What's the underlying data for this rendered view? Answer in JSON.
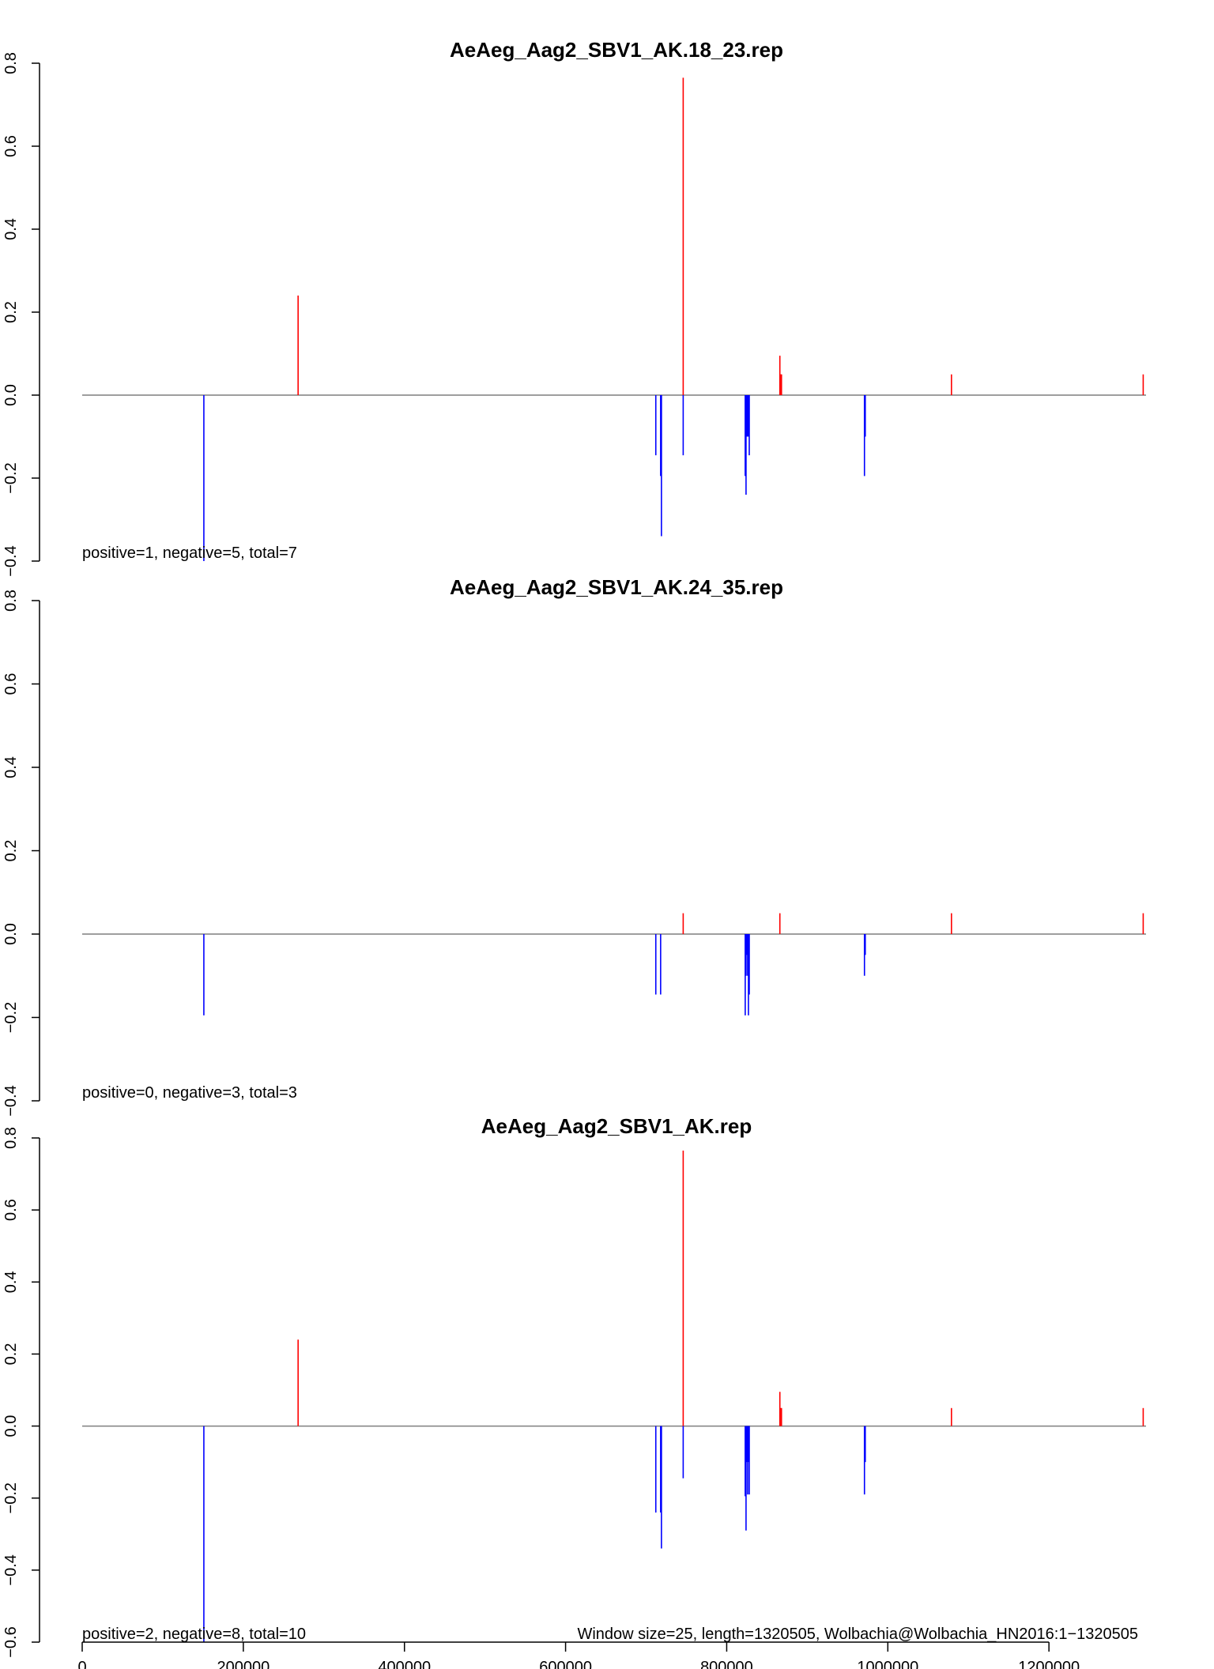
{
  "chart_data": [
    {
      "type": "bar",
      "title": "AeAeg_Aag2_SBV1_AK.18_23.rep",
      "ylim": [
        -0.4,
        0.8
      ],
      "yticks": [
        -0.4,
        -0.2,
        0.0,
        0.2,
        0.4,
        0.6,
        0.8
      ],
      "ytick_labels": [
        "−0.4",
        "−0.2",
        "0.0",
        "0.2",
        "0.4",
        "0.6",
        "0.8"
      ],
      "summary": "positive=1, negative=5, total=7",
      "colors": {
        "positive": "#ff0000",
        "negative": "#0000ff",
        "baseline": "#7f7f7f"
      },
      "positive": [
        {
          "x": 268000,
          "y": 0.24
        },
        {
          "x": 746000,
          "y": 0.765
        },
        {
          "x": 866000,
          "y": 0.095
        },
        {
          "x": 867000,
          "y": 0.05
        },
        {
          "x": 868000,
          "y": 0.05
        },
        {
          "x": 1079000,
          "y": 0.05
        },
        {
          "x": 1317000,
          "y": 0.05
        }
      ],
      "negative": [
        {
          "x": 151000,
          "y": -0.4
        },
        {
          "x": 712000,
          "y": -0.145
        },
        {
          "x": 718000,
          "y": -0.195
        },
        {
          "x": 719000,
          "y": -0.34
        },
        {
          "x": 746000,
          "y": -0.145
        },
        {
          "x": 823000,
          "y": -0.195
        },
        {
          "x": 824000,
          "y": -0.24
        },
        {
          "x": 825000,
          "y": -0.1
        },
        {
          "x": 826000,
          "y": -0.1
        },
        {
          "x": 827000,
          "y": -0.1
        },
        {
          "x": 828000,
          "y": -0.145
        },
        {
          "x": 971000,
          "y": -0.195
        },
        {
          "x": 972000,
          "y": -0.1
        }
      ]
    },
    {
      "type": "bar",
      "title": "AeAeg_Aag2_SBV1_AK.24_35.rep",
      "ylim": [
        -0.4,
        0.8
      ],
      "yticks": [
        -0.4,
        -0.2,
        0.0,
        0.2,
        0.4,
        0.6,
        0.8
      ],
      "ytick_labels": [
        "−0.4",
        "−0.2",
        "0.0",
        "0.2",
        "0.4",
        "0.6",
        "0.8"
      ],
      "summary": "positive=0, negative=3, total=3",
      "colors": {
        "positive": "#ff0000",
        "negative": "#0000ff",
        "baseline": "#7f7f7f"
      },
      "positive": [
        {
          "x": 746000,
          "y": 0.05
        },
        {
          "x": 866000,
          "y": 0.05
        },
        {
          "x": 1079000,
          "y": 0.05
        },
        {
          "x": 1317000,
          "y": 0.05
        }
      ],
      "negative": [
        {
          "x": 151000,
          "y": -0.195
        },
        {
          "x": 712000,
          "y": -0.145
        },
        {
          "x": 718000,
          "y": -0.145
        },
        {
          "x": 823000,
          "y": -0.195
        },
        {
          "x": 824000,
          "y": -0.1
        },
        {
          "x": 825000,
          "y": -0.05
        },
        {
          "x": 826000,
          "y": -0.1
        },
        {
          "x": 827000,
          "y": -0.195
        },
        {
          "x": 828000,
          "y": -0.145
        },
        {
          "x": 971000,
          "y": -0.1
        },
        {
          "x": 972000,
          "y": -0.05
        }
      ]
    },
    {
      "type": "bar",
      "title": "AeAeg_Aag2_SBV1_AK.rep",
      "ylim": [
        -0.6,
        0.8
      ],
      "yticks": [
        -0.6,
        -0.4,
        -0.2,
        0.0,
        0.2,
        0.4,
        0.6,
        0.8
      ],
      "ytick_labels": [
        "−0.6",
        "−0.4",
        "−0.2",
        "0.0",
        "0.2",
        "0.4",
        "0.6",
        "0.8"
      ],
      "summary": "positive=2, negative=8, total=10",
      "footnote": "Window size=25, length=1320505, Wolbachia@Wolbachia_HN2016:1−1320505",
      "colors": {
        "positive": "#ff0000",
        "negative": "#0000ff",
        "baseline": "#7f7f7f"
      },
      "xlim": [
        0,
        1320505
      ],
      "xticks": [
        0,
        200000,
        400000,
        600000,
        800000,
        1000000,
        1200000
      ],
      "xtick_labels": [
        "0",
        "200000",
        "400000",
        "600000",
        "800000",
        "1000000",
        "1200000"
      ],
      "positive": [
        {
          "x": 268000,
          "y": 0.24
        },
        {
          "x": 746000,
          "y": 0.765
        },
        {
          "x": 866000,
          "y": 0.095
        },
        {
          "x": 867000,
          "y": 0.05
        },
        {
          "x": 868000,
          "y": 0.05
        },
        {
          "x": 1079000,
          "y": 0.05
        },
        {
          "x": 1317000,
          "y": 0.05
        }
      ],
      "negative": [
        {
          "x": 151000,
          "y": -0.6
        },
        {
          "x": 712000,
          "y": -0.24
        },
        {
          "x": 718000,
          "y": -0.24
        },
        {
          "x": 719000,
          "y": -0.34
        },
        {
          "x": 746000,
          "y": -0.145
        },
        {
          "x": 823000,
          "y": -0.195
        },
        {
          "x": 824000,
          "y": -0.29
        },
        {
          "x": 825000,
          "y": -0.1
        },
        {
          "x": 826000,
          "y": -0.19
        },
        {
          "x": 827000,
          "y": -0.1
        },
        {
          "x": 828000,
          "y": -0.19
        },
        {
          "x": 971000,
          "y": -0.19
        },
        {
          "x": 972000,
          "y": -0.1
        }
      ]
    }
  ]
}
